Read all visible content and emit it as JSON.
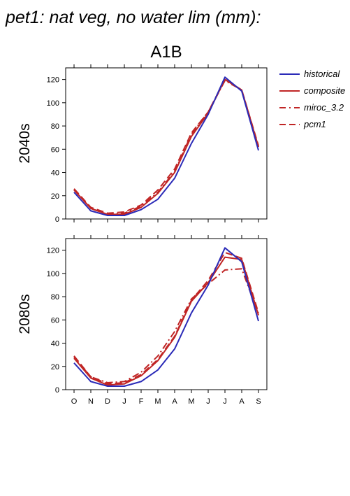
{
  "figure": {
    "title": "pet1: nat veg, no water lim (mm):",
    "scenario": "A1B"
  },
  "colors": {
    "historical": "#2b2bb8",
    "models": "#c02525",
    "axis": "#000000"
  },
  "legend": {
    "placement": "right",
    "items": [
      {
        "label": "historical",
        "style": "solid",
        "color": "#2b2bb8"
      },
      {
        "label": "composite",
        "style": "solid",
        "color": "#c02525"
      },
      {
        "label": "miroc_3.2",
        "style": "dashdot",
        "color": "#c02525"
      },
      {
        "label": "pcm1",
        "style": "dashed",
        "color": "#c02525"
      }
    ]
  },
  "chart_data": [
    {
      "type": "line",
      "row_label": "2040s",
      "categories": [
        "O",
        "N",
        "D",
        "J",
        "F",
        "M",
        "A",
        "M",
        "J",
        "J",
        "A",
        "S"
      ],
      "ylim": [
        0,
        130
      ],
      "yticks": [
        0,
        20,
        40,
        60,
        80,
        100,
        120
      ],
      "grid": false,
      "show_x_tick_labels": false,
      "series": [
        {
          "name": "historical",
          "style": "solid",
          "values": [
            23,
            7,
            3,
            3,
            8,
            17,
            35,
            65,
            90,
            122,
            110,
            59
          ]
        },
        {
          "name": "composite",
          "style": "solid",
          "values": [
            25,
            9,
            4,
            4,
            10,
            22,
            40,
            71,
            91,
            120,
            111,
            62
          ]
        },
        {
          "name": "miroc_3.2",
          "style": "dashdot",
          "values": [
            25,
            9,
            4,
            5,
            11,
            23,
            41,
            73,
            92,
            119,
            111,
            62
          ]
        },
        {
          "name": "pcm1",
          "style": "dashed",
          "values": [
            26,
            10,
            5,
            6,
            12,
            25,
            43,
            74,
            92,
            120,
            111,
            63
          ]
        }
      ]
    },
    {
      "type": "line",
      "row_label": "2080s",
      "categories": [
        "O",
        "N",
        "D",
        "J",
        "F",
        "M",
        "A",
        "M",
        "J",
        "J",
        "A",
        "S"
      ],
      "ylim": [
        0,
        130
      ],
      "yticks": [
        0,
        20,
        40,
        60,
        80,
        100,
        120
      ],
      "grid": false,
      "show_x_tick_labels": true,
      "series": [
        {
          "name": "historical",
          "style": "solid",
          "values": [
            23,
            7,
            3,
            3,
            7,
            17,
            35,
            66,
            90,
            122,
            110,
            59
          ]
        },
        {
          "name": "composite",
          "style": "solid",
          "values": [
            27,
            10,
            4,
            5,
            12,
            25,
            45,
            76,
            92,
            114,
            112,
            64
          ]
        },
        {
          "name": "miroc_3.2",
          "style": "dashdot",
          "values": [
            28,
            11,
            6,
            7,
            15,
            29,
            50,
            78,
            91,
            103,
            104,
            65
          ]
        },
        {
          "name": "pcm1",
          "style": "dashed",
          "values": [
            29,
            11,
            5,
            6,
            13,
            26,
            46,
            77,
            94,
            118,
            113,
            66
          ]
        }
      ]
    }
  ]
}
